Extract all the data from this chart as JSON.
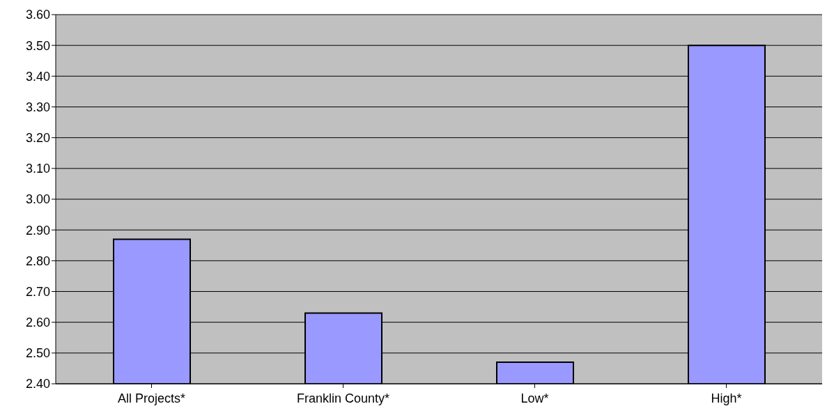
{
  "chart_data": {
    "type": "bar",
    "categories": [
      "All Projects*",
      "Franklin County*",
      "Low*",
      "High*"
    ],
    "values": [
      2.87,
      2.63,
      2.47,
      3.5
    ],
    "color": "#9999ff",
    "ylim": [
      2.4,
      3.6
    ],
    "yticks": [
      {
        "value": 2.4,
        "label": "2.40"
      },
      {
        "value": 2.5,
        "label": "2.50"
      },
      {
        "value": 2.6,
        "label": "2.60"
      },
      {
        "value": 2.7,
        "label": "2.70"
      },
      {
        "value": 2.8,
        "label": "2.80"
      },
      {
        "value": 2.9,
        "label": "2.90"
      },
      {
        "value": 3.0,
        "label": "3.00"
      },
      {
        "value": 3.1,
        "label": "3.10"
      },
      {
        "value": 3.2,
        "label": "3.20"
      },
      {
        "value": 3.3,
        "label": "3.30"
      },
      {
        "value": 3.4,
        "label": "3.40"
      },
      {
        "value": 3.5,
        "label": "3.50"
      },
      {
        "value": 3.6,
        "label": "3.60"
      }
    ],
    "grid": "y",
    "legend": false
  }
}
